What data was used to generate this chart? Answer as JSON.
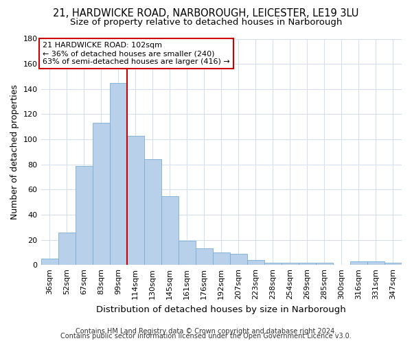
{
  "title_line1": "21, HARDWICKE ROAD, NARBOROUGH, LEICESTER, LE19 3LU",
  "title_line2": "Size of property relative to detached houses in Narborough",
  "xlabel": "Distribution of detached houses by size in Narborough",
  "ylabel": "Number of detached properties",
  "categories": [
    "36sqm",
    "52sqm",
    "67sqm",
    "83sqm",
    "99sqm",
    "114sqm",
    "130sqm",
    "145sqm",
    "161sqm",
    "176sqm",
    "192sqm",
    "207sqm",
    "223sqm",
    "238sqm",
    "254sqm",
    "269sqm",
    "285sqm",
    "300sqm",
    "316sqm",
    "331sqm",
    "347sqm"
  ],
  "values": [
    5,
    26,
    79,
    113,
    145,
    103,
    84,
    55,
    19,
    13,
    10,
    9,
    4,
    2,
    2,
    2,
    2,
    0,
    3,
    3,
    2
  ],
  "bar_color": "#b8d0ea",
  "bar_edge_color": "#7aadd4",
  "vline_color": "#cc0000",
  "vline_bar_index": 4,
  "ylim": [
    0,
    180
  ],
  "yticks": [
    0,
    20,
    40,
    60,
    80,
    100,
    120,
    140,
    160,
    180
  ],
  "annotation_line1": "21 HARDWICKE ROAD: 102sqm",
  "annotation_line2": "← 36% of detached houses are smaller (240)",
  "annotation_line3": "63% of semi-detached houses are larger (416) →",
  "annotation_box_color": "#ffffff",
  "annotation_box_edge": "#cc0000",
  "footer_line1": "Contains HM Land Registry data © Crown copyright and database right 2024.",
  "footer_line2": "Contains public sector information licensed under the Open Government Licence v3.0.",
  "background_color": "#ffffff",
  "grid_color": "#d5dff0",
  "title_fontsize": 10.5,
  "subtitle_fontsize": 9.5,
  "ylabel_fontsize": 9,
  "xlabel_fontsize": 9.5,
  "tick_fontsize": 8,
  "annot_fontsize": 8,
  "footer_fontsize": 7
}
